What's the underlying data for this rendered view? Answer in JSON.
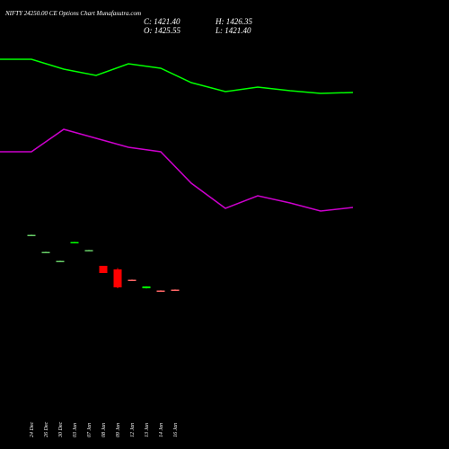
{
  "header": {
    "title": "NIFTY 24250.00  CE Options  Chart Munafasutra.com",
    "close_label": "C: 1421.40",
    "open_label": "O: 1425.55",
    "high_label": "H: 1426.35",
    "low_label": "L: 1421.40"
  },
  "colors": {
    "background": "#000000",
    "line_upper": "#00ff00",
    "line_lower": "#cc00cc",
    "bull": "#00ff00",
    "bear": "#ff0000",
    "bull_small": "#66cc66",
    "bear_small": "#ff6666",
    "text": "#ffffff"
  },
  "chart_data": {
    "type": "candlestick",
    "x_tick_labels": [
      "24 Dec",
      "26 Dec",
      "30 Dec",
      "03 Jan",
      "07 Jan",
      "08 Jan",
      "09 Jan",
      "12 Jan",
      "13 Jan",
      "14 Jan",
      "16 Jan"
    ],
    "y_scale_unlabeled": [
      0,
      500
    ],
    "candles": [
      {
        "open": 238.5,
        "close": 238.0,
        "high": 238.8,
        "low": 237.8,
        "color": "bull_small"
      },
      {
        "open": 219.5,
        "close": 219.0,
        "high": 219.8,
        "low": 218.8,
        "color": "bull_small"
      },
      {
        "open": 209.5,
        "close": 209.0,
        "high": 209.8,
        "low": 208.8,
        "color": "bull_small"
      },
      {
        "open": 229.5,
        "close": 230.5,
        "high": 230.8,
        "low": 229.2,
        "color": "bull"
      },
      {
        "open": 221.5,
        "close": 221.0,
        "high": 221.8,
        "low": 220.8,
        "color": "bull_small"
      },
      {
        "open": 204.0,
        "close": 196.0,
        "high": 204.0,
        "low": 196.0,
        "color": "bear"
      },
      {
        "open": 200.0,
        "close": 180.0,
        "high": 201.5,
        "low": 179.0,
        "color": "bear"
      },
      {
        "open": 188.5,
        "close": 188.0,
        "high": 188.8,
        "low": 187.8,
        "color": "bear_small"
      },
      {
        "open": 179.0,
        "close": 181.0,
        "high": 181.3,
        "low": 178.7,
        "color": "bull"
      },
      {
        "open": 176.5,
        "close": 176.0,
        "high": 176.8,
        "low": 175.8,
        "color": "bear_small"
      },
      {
        "open": 177.5,
        "close": 177.0,
        "high": 177.8,
        "low": 176.8,
        "color": "bear_small"
      }
    ],
    "overlay_upper": {
      "x": [
        -3,
        35,
        71,
        107,
        143,
        179,
        213,
        251,
        287,
        323,
        357,
        393
      ],
      "y": [
        434,
        434,
        423,
        416,
        429,
        424,
        408,
        398,
        403,
        399,
        396,
        397
      ]
    },
    "overlay_lower": {
      "x": [
        -3,
        35,
        71,
        107,
        143,
        179,
        213,
        251,
        287,
        323,
        357,
        393
      ],
      "y": [
        331,
        331,
        356,
        346,
        336,
        331,
        296,
        268,
        282,
        274,
        265,
        269
      ]
    }
  }
}
